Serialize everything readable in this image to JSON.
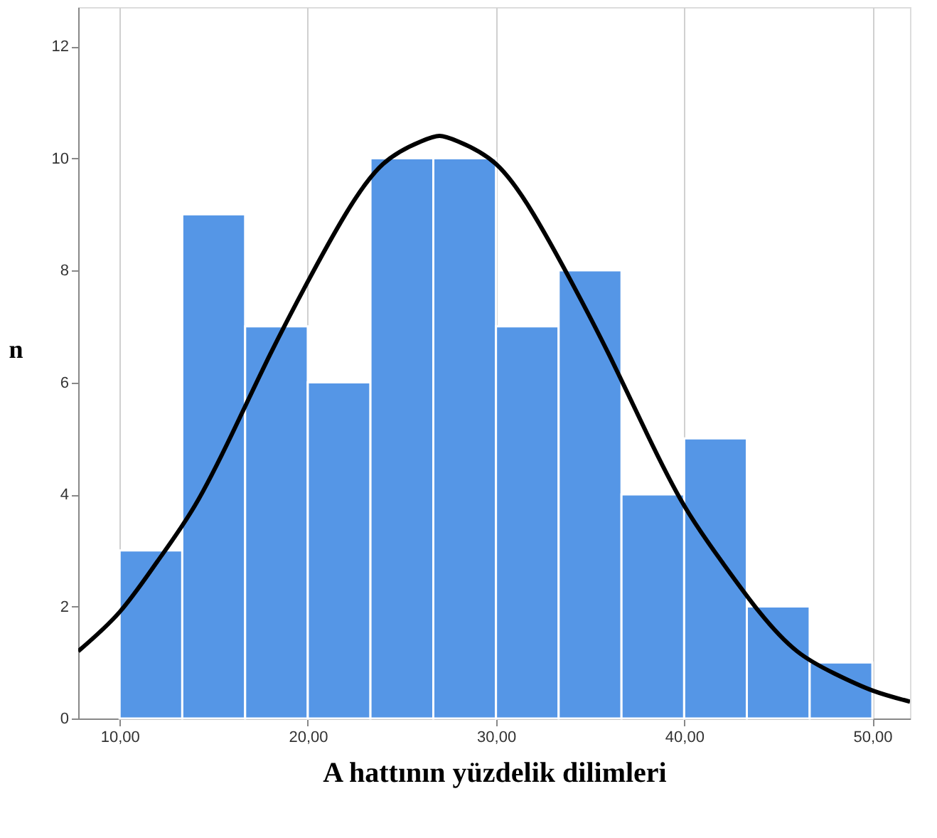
{
  "chart_data": {
    "type": "histogram",
    "xlabel": "A hattının yüzdelik dilimleri",
    "ylabel": "n",
    "bins": [
      10,
      13.33,
      16.67,
      20,
      23.33,
      26.67,
      30,
      33.33,
      36.67,
      40,
      43.33,
      46.67,
      50
    ],
    "values": [
      3,
      9,
      7,
      6,
      10,
      10,
      7,
      8,
      4,
      5,
      2,
      1
    ],
    "color": "#5596e6",
    "series": [
      {
        "type": "line",
        "color": "#000000",
        "x": [
          7.8,
          10,
          12,
          14,
          16,
          18,
          20,
          22,
          24,
          26,
          27,
          28,
          30,
          32,
          34,
          36,
          38,
          40,
          42,
          44,
          46,
          48,
          50,
          52
        ],
        "values": [
          1.2,
          1.9,
          2.8,
          3.8,
          5.1,
          6.5,
          7.8,
          9.0,
          9.9,
          10.3,
          10.4,
          10.3,
          9.9,
          9.0,
          7.8,
          6.5,
          5.1,
          3.8,
          2.8,
          1.9,
          1.2,
          0.8,
          0.5,
          0.3
        ]
      }
    ],
    "xlim": [
      7.8,
      52
    ],
    "ylim": [
      0,
      12.7
    ],
    "xticks": [
      {
        "value": 10,
        "label": "10,00"
      },
      {
        "value": 20,
        "label": "20,00"
      },
      {
        "value": 30,
        "label": "30,00"
      },
      {
        "value": 40,
        "label": "40,00"
      },
      {
        "value": 50,
        "label": "50,00"
      }
    ],
    "yticks": [
      0,
      2,
      4,
      6,
      8,
      10,
      12
    ],
    "grid": "x"
  }
}
